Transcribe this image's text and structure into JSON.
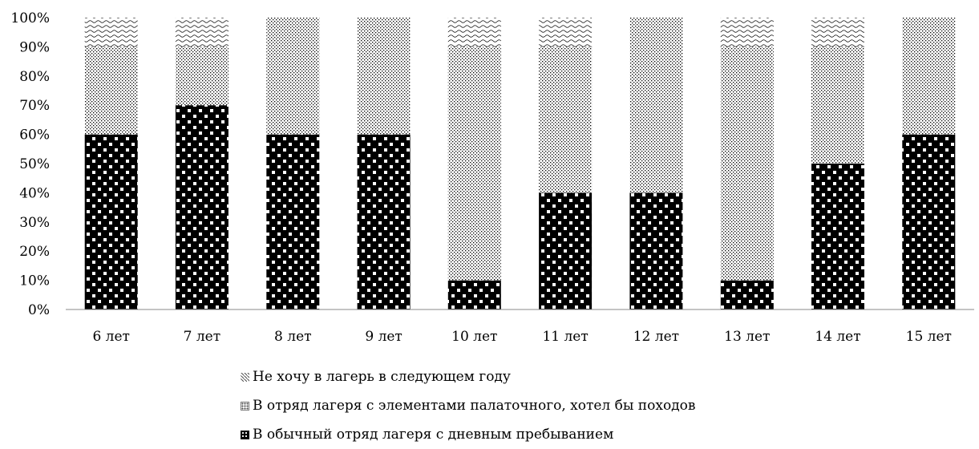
{
  "chart_data": {
    "type": "bar",
    "stacked": true,
    "categories": [
      "6 лет",
      "7 лет",
      "8 лет",
      "9 лет",
      "10 лет",
      "11 лет",
      "12 лет",
      "13 лет",
      "14 лет",
      "15 лет"
    ],
    "series": [
      {
        "name": "В обычный отряд лагеря с дневным пребыванием",
        "pattern": "dots",
        "values": [
          60,
          70,
          60,
          60,
          10,
          40,
          40,
          10,
          50,
          60
        ]
      },
      {
        "name": "В отряд лагеря с элементами палаточного, хотел бы походов",
        "pattern": "checker",
        "values": [
          30,
          20,
          40,
          40,
          80,
          50,
          60,
          80,
          40,
          40
        ]
      },
      {
        "name": "Не хочу в лагерь в следующем году",
        "pattern": "wave",
        "values": [
          10,
          10,
          0,
          0,
          10,
          10,
          0,
          10,
          10,
          0
        ]
      }
    ],
    "ylim": [
      0,
      100
    ],
    "yticks": [
      "0%",
      "10%",
      "20%",
      "30%",
      "40%",
      "50%",
      "60%",
      "70%",
      "80%",
      "90%",
      "100%"
    ],
    "legend_position": "bottom",
    "legend_order": [
      "Не хочу в лагерь в следующем году",
      "В отряд лагеря с элементами палаточного, хотел бы походов",
      "В обычный отряд лагеря с дневным пребыванием"
    ],
    "colors": {
      "fill": "#000000",
      "background": "#ffffff",
      "axis": "#888888"
    }
  }
}
